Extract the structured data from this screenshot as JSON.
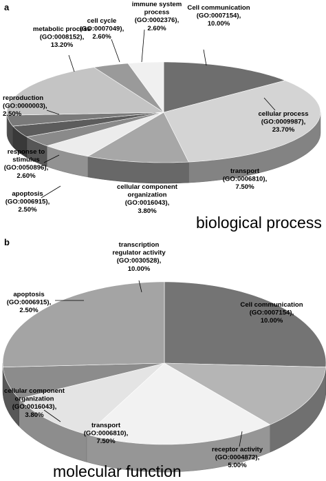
{
  "chart_data": [
    {
      "type": "pie",
      "panel": "a",
      "caption": "biological process",
      "slices": [
        {
          "name": "Cell communication",
          "id": "(GO:0007154),",
          "value": 10.0,
          "value_text": "10.00%",
          "color": "#6e6e6e"
        },
        {
          "name": "cellular process",
          "id": "(GO:0009987),",
          "value": 23.7,
          "value_text": "23.70%",
          "color": "#d4d4d4"
        },
        {
          "name": "transport",
          "id": "(GO:0006810),",
          "value": 7.5,
          "value_text": "7.50%",
          "color": "#a7a7a7"
        },
        {
          "name": "cellular component organization",
          "id": "(GO:0016043),",
          "value": 3.8,
          "value_text": "3.80%",
          "color": "#ececec"
        },
        {
          "name": "apoptosis",
          "id": "(GO:0006915),",
          "value": 2.5,
          "value_text": "2.50%",
          "color": "#8a8a8a"
        },
        {
          "name": "response to stimulus",
          "id": "(GO:0050896),",
          "value": 2.6,
          "value_text": "2.60%",
          "color": "#5c5c5c"
        },
        {
          "name": "reproduction",
          "id": "(GO:0000003),",
          "value": 2.5,
          "value_text": "2.50%",
          "color": "#7a7a7a"
        },
        {
          "name": "metabolic process",
          "id": "(GO:0008152),",
          "value": 13.2,
          "value_text": "13.20%",
          "color": "#c4c4c4"
        },
        {
          "name": "cell cycle",
          "id": "(GO:0007049),",
          "value": 2.6,
          "value_text": "2.60%",
          "color": "#9a9a9a"
        },
        {
          "name": "immune system process",
          "id": "(GO:0002376),",
          "value": 2.6,
          "value_text": "2.60%",
          "color": "#f0f0f0"
        }
      ]
    },
    {
      "type": "pie",
      "panel": "b",
      "caption": "molecular function",
      "slices": [
        {
          "name": "Cell communication",
          "id": "(GO:0007154),",
          "value": 10.0,
          "value_text": "10.00%",
          "color": "#747474"
        },
        {
          "name": "receptor activity",
          "id": "(GO:0004872),",
          "value": 5.0,
          "value_text": "5.00%",
          "color": "#b5b5b5"
        },
        {
          "name": "transport",
          "id": "(GO:0006810),",
          "value": 7.5,
          "value_text": "7.50%",
          "color": "#f2f2f2"
        },
        {
          "name": "cellular component organization",
          "id": "(GO:0016043),",
          "value": 3.8,
          "value_text": "3.80%",
          "color": "#e4e4e4"
        },
        {
          "name": "apoptosis",
          "id": "(GO:0006915),",
          "value": 2.5,
          "value_text": "2.50%",
          "color": "#8c8c8c"
        },
        {
          "name": "transcription regulator activity",
          "id": "(GO:0030528),",
          "value": 10.0,
          "value_text": "10.00%",
          "color": "#a4a4a4"
        }
      ]
    }
  ]
}
